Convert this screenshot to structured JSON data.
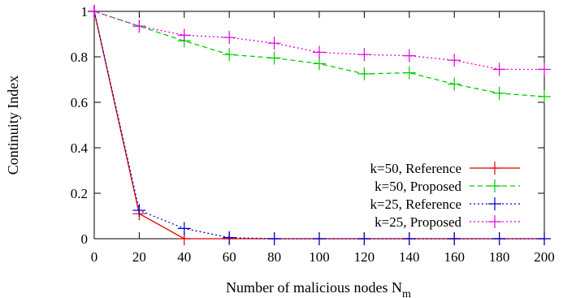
{
  "chart_data": {
    "type": "line",
    "xlabel": "Number of malicious nodes N",
    "xlabel_sub": "m",
    "ylabel": "Continuity Index",
    "xlim": [
      0,
      200
    ],
    "ylim": [
      0,
      1
    ],
    "xticks": [
      0,
      20,
      40,
      60,
      80,
      100,
      120,
      140,
      160,
      180,
      200
    ],
    "yticks": [
      0,
      0.2,
      0.4,
      0.6,
      0.8,
      1
    ],
    "ytick_labels": [
      "0",
      "0.2",
      "0.4",
      "0.6",
      "0.8",
      "1"
    ],
    "legend_position": "lower-right",
    "grid": false,
    "series": [
      {
        "name": "k=50, Reference",
        "color": "#e00000",
        "dash": "solid",
        "marker": "plus",
        "x": [
          0,
          20,
          40,
          60,
          80,
          100,
          120,
          140,
          160,
          180,
          200
        ],
        "y": [
          1.0,
          0.11,
          0.0,
          0.0,
          0.0,
          0.0,
          0.0,
          0.0,
          0.0,
          0.0,
          0.0
        ]
      },
      {
        "name": "k=50, Proposed",
        "color": "#00cc00",
        "dash": "dashed",
        "marker": "plus",
        "x": [
          0,
          20,
          40,
          60,
          80,
          100,
          120,
          140,
          160,
          180,
          200
        ],
        "y": [
          1.0,
          0.935,
          0.87,
          0.81,
          0.795,
          0.77,
          0.725,
          0.73,
          0.68,
          0.64,
          0.625
        ]
      },
      {
        "name": "k=25, Reference",
        "color": "#0000cc",
        "dash": "dotted",
        "marker": "plus",
        "x": [
          0,
          20,
          40,
          60,
          80,
          100,
          120,
          140,
          160,
          180,
          200
        ],
        "y": [
          1.0,
          0.125,
          0.045,
          0.005,
          0.0,
          0.0,
          0.0,
          0.0,
          0.0,
          0.0,
          0.0
        ]
      },
      {
        "name": "k=25, Proposed",
        "color": "#e000e0",
        "dash": "dotted",
        "marker": "plus",
        "x": [
          0,
          20,
          40,
          60,
          80,
          100,
          120,
          140,
          160,
          180,
          200
        ],
        "y": [
          1.0,
          0.935,
          0.895,
          0.885,
          0.86,
          0.82,
          0.81,
          0.805,
          0.785,
          0.745,
          0.745
        ]
      }
    ]
  }
}
